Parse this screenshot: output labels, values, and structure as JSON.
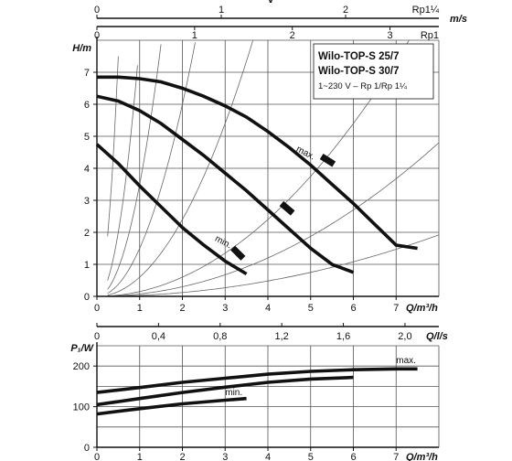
{
  "legend_box": {
    "lines": [
      "Wilo-TOP-S 25/7",
      "Wilo-TOP-S 30/7"
    ],
    "subtitle": "1~230 V – Rp 1/Rp 1¼"
  },
  "chart_data": [
    {
      "type": "line",
      "title": "",
      "xlabel": "Q/m³/h",
      "ylabel": "H/m",
      "xlim": [
        0,
        8
      ],
      "ylim": [
        0,
        8
      ],
      "x_ticks": [
        "0",
        "1",
        "2",
        "3",
        "4",
        "5",
        "6",
        "7"
      ],
      "y_ticks": [
        "0",
        "1",
        "2",
        "3",
        "4",
        "5",
        "6",
        "7"
      ],
      "grid": true,
      "secondary_axes": [
        {
          "position": "top",
          "label": "v",
          "unit": "m/s",
          "scale": "Rp1¼",
          "range": [
            0,
            2.75
          ],
          "ticks": [
            "0",
            "1",
            "2"
          ],
          "end_label": "Rp1¼"
        },
        {
          "position": "top",
          "label": "",
          "unit": "m/s",
          "scale": "Rp1",
          "range": [
            0,
            3.5
          ],
          "ticks": [
            "0",
            "1",
            "2",
            "3"
          ],
          "end_label": "Rp1"
        },
        {
          "position": "bottom",
          "label": "",
          "unit": "Q/l/s",
          "range": [
            0,
            2.22
          ],
          "ticks": [
            "0",
            "0,4",
            "0,8",
            "1,2",
            "1,6",
            "2,0"
          ]
        }
      ],
      "annotations": [
        "max.",
        "min."
      ],
      "series": [
        {
          "name": "max.",
          "x": [
            0,
            0.5,
            1,
            1.5,
            2,
            2.5,
            3,
            3.5,
            4,
            4.5,
            5,
            5.5,
            6,
            6.5,
            7,
            7.5
          ],
          "y": [
            6.85,
            6.85,
            6.8,
            6.7,
            6.5,
            6.25,
            5.95,
            5.6,
            5.15,
            4.65,
            4.1,
            3.5,
            2.9,
            2.25,
            1.6,
            1.5
          ]
        },
        {
          "name": "",
          "x": [
            0,
            0.5,
            1,
            1.5,
            2,
            2.5,
            3,
            3.5,
            4,
            4.5,
            5,
            5.5,
            6
          ],
          "y": [
            6.25,
            6.1,
            5.8,
            5.4,
            4.9,
            4.4,
            3.85,
            3.3,
            2.7,
            2.1,
            1.5,
            1.0,
            0.75
          ]
        },
        {
          "name": "min.",
          "x": [
            0,
            0.5,
            1,
            1.5,
            2,
            2.5,
            3,
            3.5
          ],
          "y": [
            4.75,
            4.15,
            3.45,
            2.8,
            2.15,
            1.6,
            1.1,
            0.7
          ]
        }
      ],
      "system_curves": [
        0.6,
        1.5,
        3.5,
        8,
        30,
        0.15,
        0.075,
        0.03
      ]
    },
    {
      "type": "line",
      "title": "",
      "xlabel": "Q/m³/h",
      "ylabel": "P₁/W",
      "xlim": [
        0,
        8
      ],
      "ylim": [
        0,
        250
      ],
      "x_ticks": [
        "0",
        "1",
        "2",
        "3",
        "4",
        "5",
        "6",
        "7"
      ],
      "y_ticks": [
        "0",
        "100",
        "200"
      ],
      "grid": true,
      "series": [
        {
          "name": "max.",
          "x": [
            0,
            1,
            2,
            3,
            4,
            5,
            6,
            7,
            7.5
          ],
          "y": [
            135,
            147,
            160,
            170,
            180,
            187,
            191,
            193,
            193
          ]
        },
        {
          "name": "",
          "x": [
            0,
            1,
            2,
            3,
            4,
            5,
            6
          ],
          "y": [
            105,
            120,
            135,
            148,
            160,
            168,
            172
          ]
        },
        {
          "name": "min.",
          "x": [
            0,
            1,
            2,
            3,
            3.5
          ],
          "y": [
            82,
            95,
            107,
            116,
            120
          ]
        }
      ],
      "annotations": [
        "max.",
        "min."
      ]
    }
  ]
}
